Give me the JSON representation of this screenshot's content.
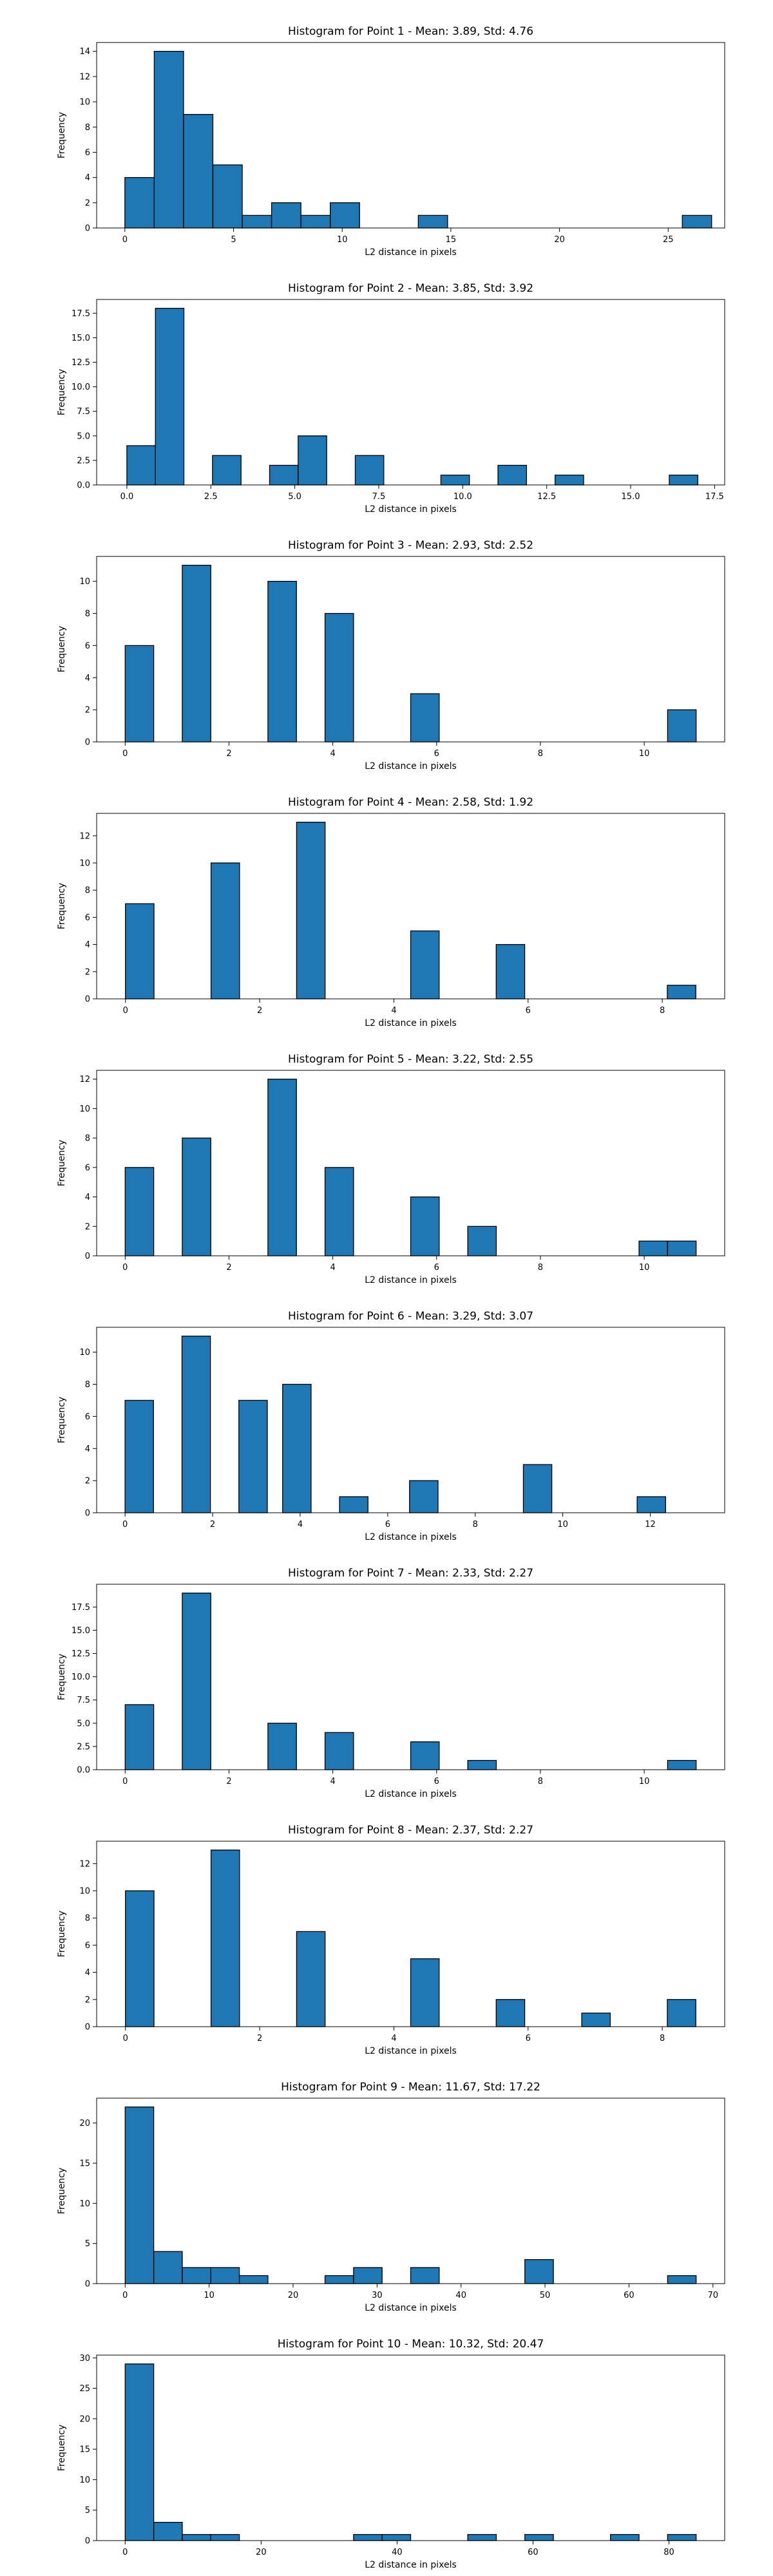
{
  "chart_data": [
    {
      "type": "bar",
      "title": "Histogram for Point 1 - Mean: 3.89, Std: 4.76",
      "xlabel": "L2 distance in pixels",
      "ylabel": "Frequency",
      "xlim": [
        -1.3,
        27.6
      ],
      "ylim": [
        0,
        14.7
      ],
      "xticks": [
        0,
        5,
        10,
        15,
        20,
        25
      ],
      "yticks": [
        0,
        2,
        4,
        6,
        8,
        10,
        12,
        14
      ],
      "bar_width": 1.35,
      "bin_starts": [
        0,
        1.35,
        2.7,
        4.05,
        5.4,
        6.75,
        8.1,
        9.45,
        13.5,
        25.65
      ],
      "values": [
        4,
        14,
        9,
        5,
        1,
        2,
        1,
        2,
        1,
        1
      ],
      "color": "#1f77b4"
    },
    {
      "type": "bar",
      "title": "Histogram for Point 2 - Mean: 3.85, Std: 3.92",
      "xlabel": "L2 distance in pixels",
      "ylabel": "Frequency",
      "xlim": [
        -0.9,
        17.8
      ],
      "ylim": [
        0,
        18.9
      ],
      "xticks": [
        0,
        2.5,
        5,
        7.5,
        10,
        12.5,
        15,
        17.5
      ],
      "ytick_labels": [
        "0.0",
        "2.5",
        "5.0",
        "7.5",
        "10.0",
        "12.5",
        "15.0",
        "17.5"
      ],
      "yticks": [
        0,
        2.5,
        5,
        7.5,
        10,
        12.5,
        15,
        17.5
      ],
      "xtick_labels": [
        "0.0",
        "2.5",
        "5.0",
        "7.5",
        "10.0",
        "12.5",
        "15.0",
        "17.5"
      ],
      "bar_width": 0.85,
      "bin_starts": [
        0,
        0.85,
        2.55,
        4.25,
        5.1,
        6.8,
        9.35,
        11.05,
        12.75,
        16.15
      ],
      "values": [
        4,
        18,
        3,
        2,
        5,
        3,
        1,
        2,
        1,
        1
      ],
      "color": "#1f77b4"
    },
    {
      "type": "bar",
      "title": "Histogram for Point 3 - Mean: 2.93, Std: 2.52",
      "xlabel": "L2 distance in pixels",
      "ylabel": "Frequency",
      "xlim": [
        -0.55,
        11.55
      ],
      "ylim": [
        0,
        11.55
      ],
      "xticks": [
        0,
        2,
        4,
        6,
        8,
        10
      ],
      "yticks": [
        0,
        2,
        4,
        6,
        8,
        10
      ],
      "bar_width": 0.55,
      "bin_starts": [
        0,
        1.1,
        2.75,
        3.85,
        5.5,
        10.45
      ],
      "values": [
        6,
        11,
        10,
        8,
        3,
        2
      ],
      "color": "#1f77b4"
    },
    {
      "type": "bar",
      "title": "Histogram for Point 4 - Mean: 2.58, Std: 1.92",
      "xlabel": "L2 distance in pixels",
      "ylabel": "Frequency",
      "xlim": [
        -0.43,
        8.93
      ],
      "ylim": [
        0,
        13.65
      ],
      "xticks": [
        0,
        2,
        4,
        6,
        8
      ],
      "yticks": [
        0,
        2,
        4,
        6,
        8,
        10,
        12
      ],
      "bar_width": 0.425,
      "bin_starts": [
        0,
        1.275,
        2.55,
        4.25,
        5.525,
        8.075
      ],
      "values": [
        7,
        10,
        13,
        5,
        4,
        1
      ],
      "color": "#1f77b4"
    },
    {
      "type": "bar",
      "title": "Histogram for Point 5 - Mean: 3.22, Std: 2.55",
      "xlabel": "L2 distance in pixels",
      "ylabel": "Frequency",
      "xlim": [
        -0.55,
        11.55
      ],
      "ylim": [
        0,
        12.6
      ],
      "xticks": [
        0,
        2,
        4,
        6,
        8,
        10
      ],
      "yticks": [
        0,
        2,
        4,
        6,
        8,
        10,
        12
      ],
      "bar_width": 0.55,
      "bin_starts": [
        0,
        1.1,
        2.75,
        3.85,
        5.5,
        6.6,
        9.9,
        10.45
      ],
      "values": [
        6,
        8,
        12,
        6,
        4,
        2,
        1,
        1
      ],
      "color": "#1f77b4"
    },
    {
      "type": "bar",
      "title": "Histogram for Point 6 - Mean: 3.29, Std: 3.07",
      "xlabel": "L2 distance in pixels",
      "ylabel": "Frequency",
      "xlim": [
        -0.65,
        13.7
      ],
      "ylim": [
        0,
        11.55
      ],
      "xticks": [
        0,
        2,
        4,
        6,
        8,
        10,
        12
      ],
      "yticks": [
        0,
        2,
        4,
        6,
        8,
        10
      ],
      "bar_width": 0.65,
      "bin_starts": [
        0,
        1.3,
        2.6,
        3.6,
        4.9,
        6.5,
        9.1,
        11.7
      ],
      "values": [
        7,
        11,
        7,
        8,
        1,
        2,
        3,
        1
      ],
      "color": "#1f77b4"
    },
    {
      "type": "bar",
      "title": "Histogram for Point 7 - Mean: 2.33, Std: 2.27",
      "xlabel": "L2 distance in pixels",
      "ylabel": "Frequency",
      "xlim": [
        -0.55,
        11.55
      ],
      "ylim": [
        0,
        19.95
      ],
      "xticks": [
        0,
        2,
        4,
        6,
        8,
        10
      ],
      "yticks": [
        0,
        2.5,
        5,
        7.5,
        10,
        12.5,
        15,
        17.5
      ],
      "ytick_labels": [
        "0.0",
        "2.5",
        "5.0",
        "7.5",
        "10.0",
        "12.5",
        "15.0",
        "17.5"
      ],
      "bar_width": 0.55,
      "bin_starts": [
        0,
        1.1,
        2.75,
        3.85,
        5.5,
        6.6,
        10.45
      ],
      "values": [
        7,
        19,
        5,
        4,
        3,
        1,
        1
      ],
      "color": "#1f77b4"
    },
    {
      "type": "bar",
      "title": "Histogram for Point 8 - Mean: 2.37, Std: 2.27",
      "xlabel": "L2 distance in pixels",
      "ylabel": "Frequency",
      "xlim": [
        -0.43,
        8.93
      ],
      "ylim": [
        0,
        13.65
      ],
      "xticks": [
        0,
        2,
        4,
        6,
        8
      ],
      "yticks": [
        0,
        2,
        4,
        6,
        8,
        10,
        12
      ],
      "bar_width": 0.425,
      "bin_starts": [
        0,
        1.275,
        2.55,
        4.25,
        5.525,
        6.8,
        8.075
      ],
      "values": [
        10,
        13,
        7,
        5,
        2,
        1,
        2
      ],
      "color": "#1f77b4"
    },
    {
      "type": "bar",
      "title": "Histogram for Point 9 - Mean: 11.67, Std: 17.22",
      "xlabel": "L2 distance in pixels",
      "ylabel": "Frequency",
      "xlim": [
        -3.4,
        71.4
      ],
      "ylim": [
        0,
        23.1
      ],
      "xticks": [
        0,
        10,
        20,
        30,
        40,
        50,
        60,
        70
      ],
      "yticks": [
        0,
        5,
        10,
        15,
        20
      ],
      "bar_width": 3.4,
      "bin_starts": [
        0,
        3.4,
        6.8,
        10.2,
        13.6,
        23.8,
        27.2,
        34.0,
        47.6,
        64.6
      ],
      "values": [
        22,
        4,
        2,
        2,
        1,
        1,
        2,
        2,
        3,
        1
      ],
      "color": "#1f77b4"
    },
    {
      "type": "bar",
      "title": "Histogram for Point 10 - Mean: 10.32, Std: 20.47",
      "xlabel": "L2 distance in pixels",
      "ylabel": "Frequency",
      "xlim": [
        -4.2,
        88.2
      ],
      "ylim": [
        0,
        30.45
      ],
      "xticks": [
        0,
        20,
        40,
        60,
        80
      ],
      "yticks": [
        0,
        5,
        10,
        15,
        20,
        25,
        30
      ],
      "bar_width": 4.2,
      "bin_starts": [
        0,
        4.2,
        8.4,
        12.6,
        33.6,
        37.8,
        50.4,
        58.8,
        71.4,
        79.8
      ],
      "values": [
        29,
        3,
        1,
        1,
        1,
        1,
        1,
        1,
        1,
        1
      ],
      "color": "#1f77b4"
    }
  ]
}
